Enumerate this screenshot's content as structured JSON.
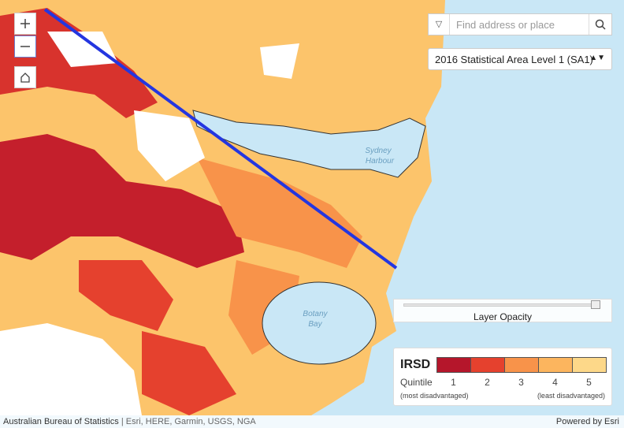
{
  "search": {
    "placeholder": "Find address or place"
  },
  "layer_select": {
    "value": "2016 Statistical Area Level 1 (SA1)"
  },
  "opacity_slider": {
    "label": "Layer Opacity"
  },
  "map_labels": {
    "harbour": [
      "Sydney",
      "Harbour"
    ],
    "bay": [
      "Botany",
      "Bay"
    ]
  },
  "legend": {
    "title": "IRSD",
    "subtitle": "Quintile",
    "classes": [
      {
        "label": "1",
        "color": "#b5162b"
      },
      {
        "label": "2",
        "color": "#e5412e"
      },
      {
        "label": "3",
        "color": "#f8934a"
      },
      {
        "label": "4",
        "color": "#fcb55e"
      },
      {
        "label": "5",
        "color": "#fdd889"
      }
    ],
    "low_note": "(most disadvantaged)",
    "high_note": "(least disadvantaged)"
  },
  "attribution": {
    "source": "Australian Bureau of Statistics",
    "providers": "| Esri, HERE, Garmin, USGS, NGA",
    "powered_by": "Powered by Esri"
  }
}
